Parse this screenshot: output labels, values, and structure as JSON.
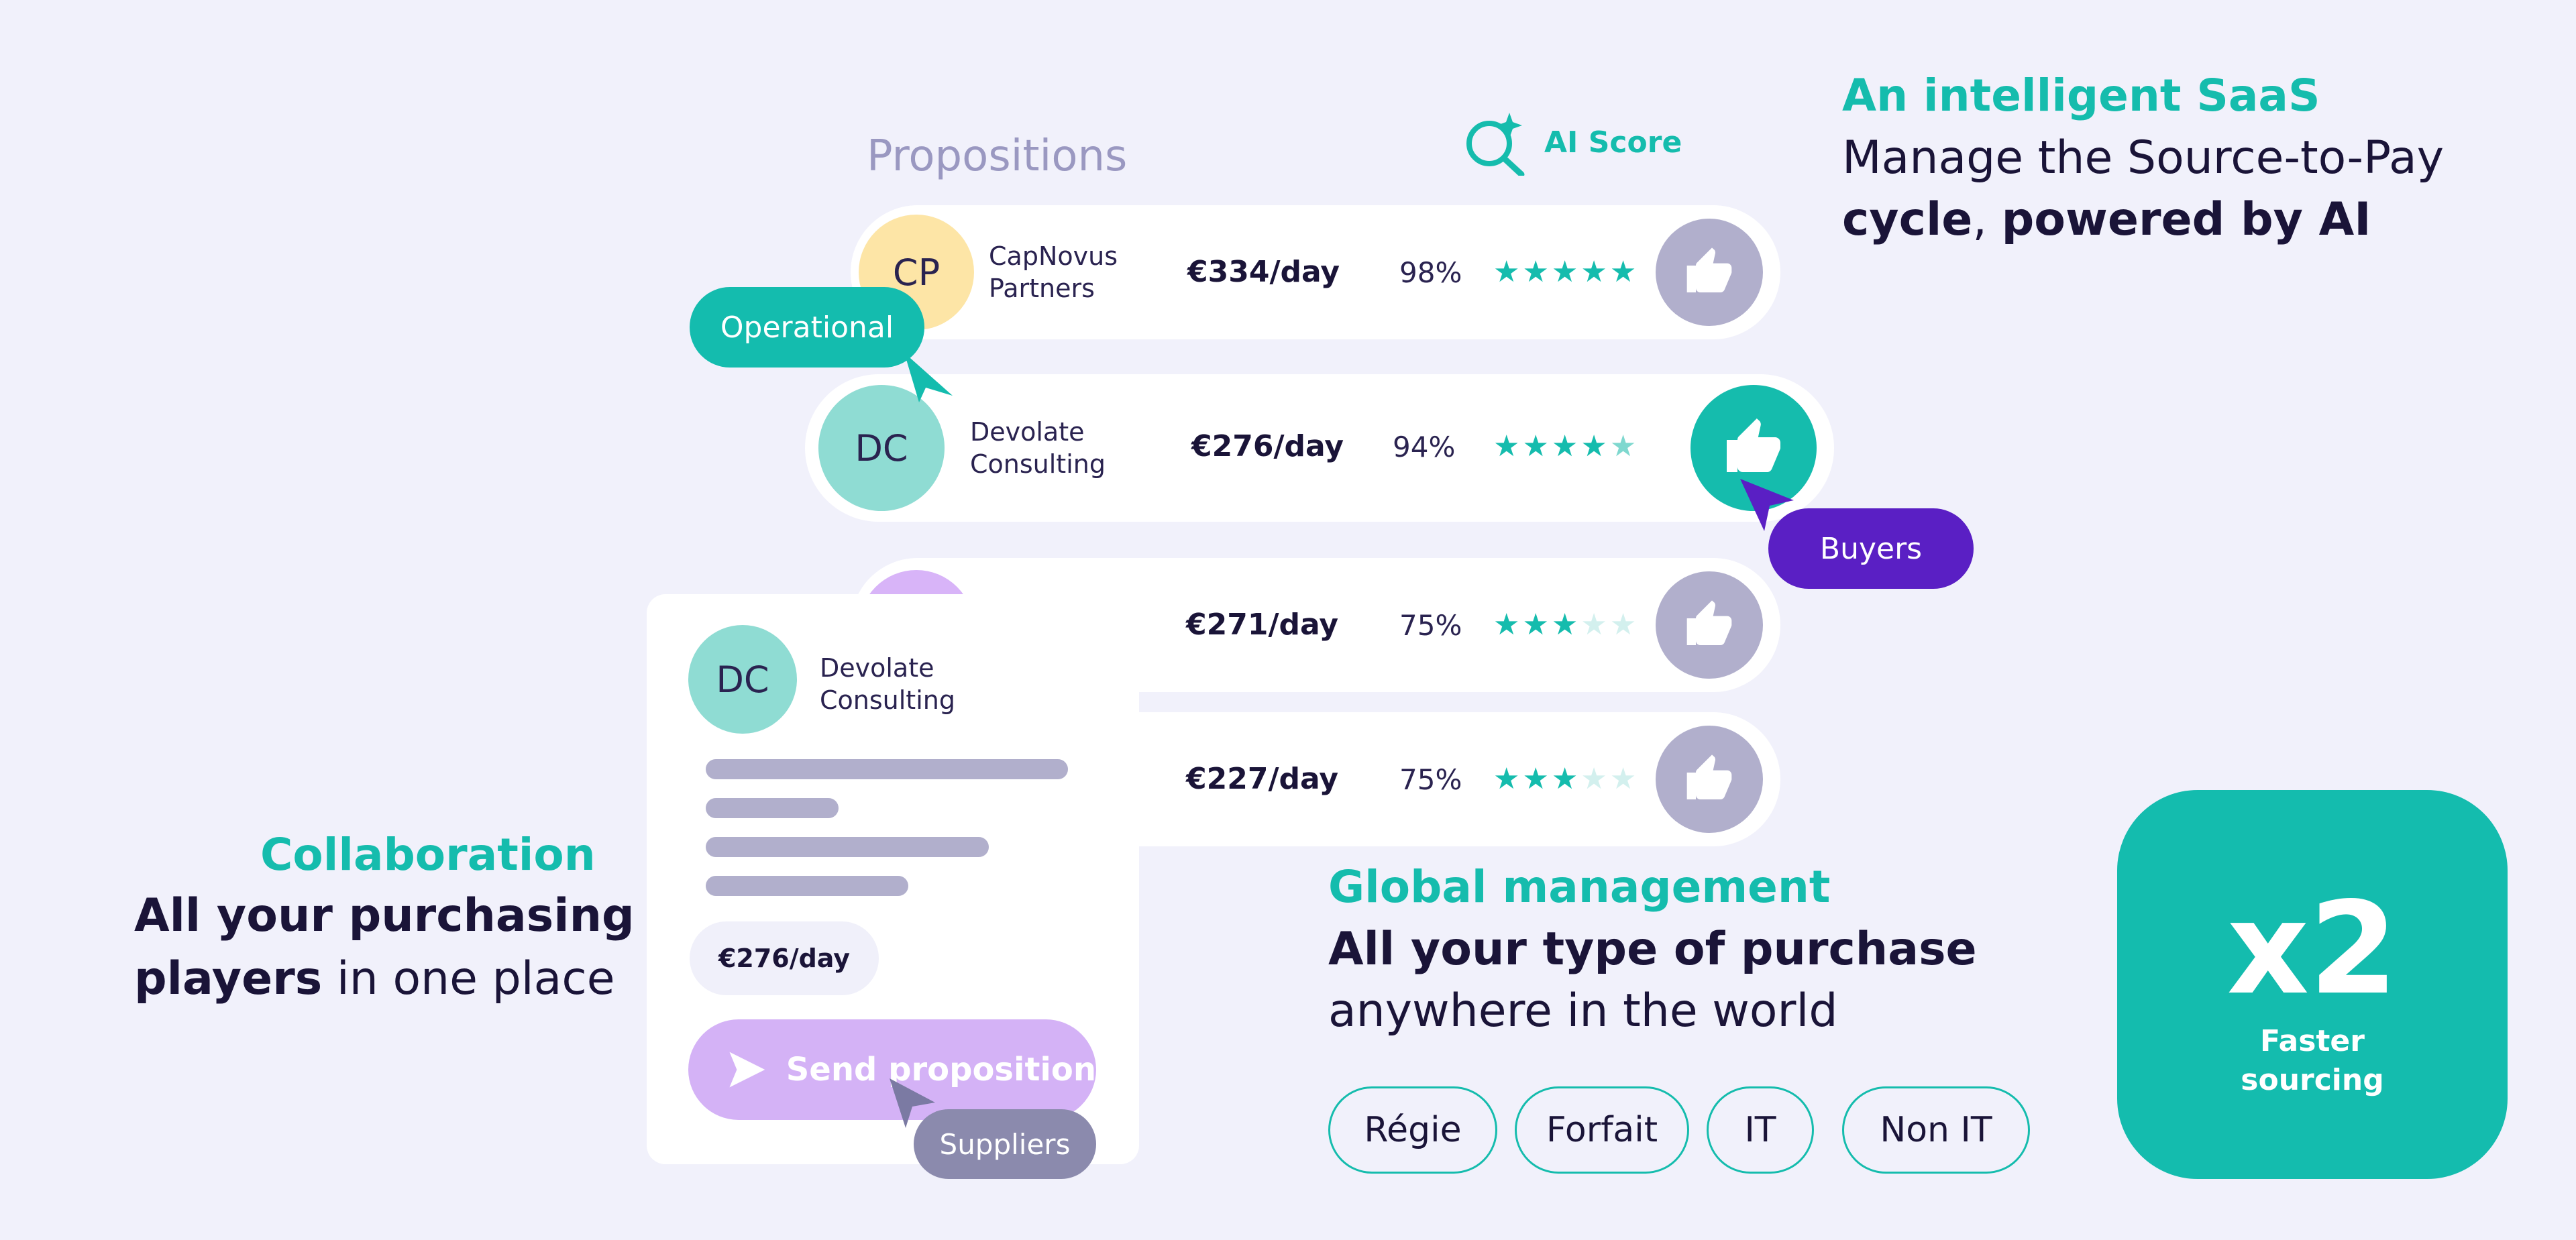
{
  "intro": {
    "heading": "An intelligent SaaS",
    "line1": "Manage the Source-to-Pay",
    "line2_b1": "cycle",
    "line2_sep": ", ",
    "line2_b2": "powered by AI"
  },
  "propositions": {
    "title": "Propositions",
    "ai_score_label": "AI Score",
    "rows": [
      {
        "initials": "CP",
        "name_line1": "CapNovus",
        "name_line2": "Partners",
        "price": "€334/day",
        "score": "98%",
        "rating": 5,
        "liked": false
      },
      {
        "initials": "DC",
        "name_line1": "Devolate",
        "name_line2": "Consulting",
        "price": "€276/day",
        "score": "94%",
        "rating": 4.5,
        "liked": true
      },
      {
        "initials": "",
        "name_line1": "",
        "name_line2": "",
        "price": "€271/day",
        "score": "75%",
        "rating": 3,
        "liked": false
      },
      {
        "initials": "",
        "name_line1": "",
        "name_line2": "",
        "price": "€227/day",
        "score": "75%",
        "rating": 3,
        "liked": false
      }
    ]
  },
  "tags": {
    "operational": "Operational",
    "buyers": "Buyers",
    "suppliers": "Suppliers"
  },
  "proposal_card": {
    "initials": "DC",
    "name_line1": "Devolate",
    "name_line2": "Consulting",
    "price": "€276/day",
    "send_label": "Send proposition"
  },
  "collaboration": {
    "heading": "Collaboration",
    "line1": "All your purchasing",
    "line2_bold": "players",
    "line2_rest": " in one place"
  },
  "global": {
    "heading": "Global management",
    "line1": "All your type of purchase",
    "line2": "anywhere in the world",
    "chips": [
      "Régie",
      "Forfait",
      "IT",
      "Non IT"
    ]
  },
  "stat": {
    "value": "x2",
    "line1": "Faster",
    "line2": "sourcing"
  },
  "colors": {
    "teal": "#15bcad",
    "purple": "#5a1fc4",
    "slate": "#8b8aad",
    "background": "#f1f1fb",
    "ink": "#1a1438"
  },
  "icons": [
    "sparkle-search-icon",
    "thumbs-up-icon",
    "star-icon",
    "send-arrow-icon",
    "pointer-icon"
  ]
}
